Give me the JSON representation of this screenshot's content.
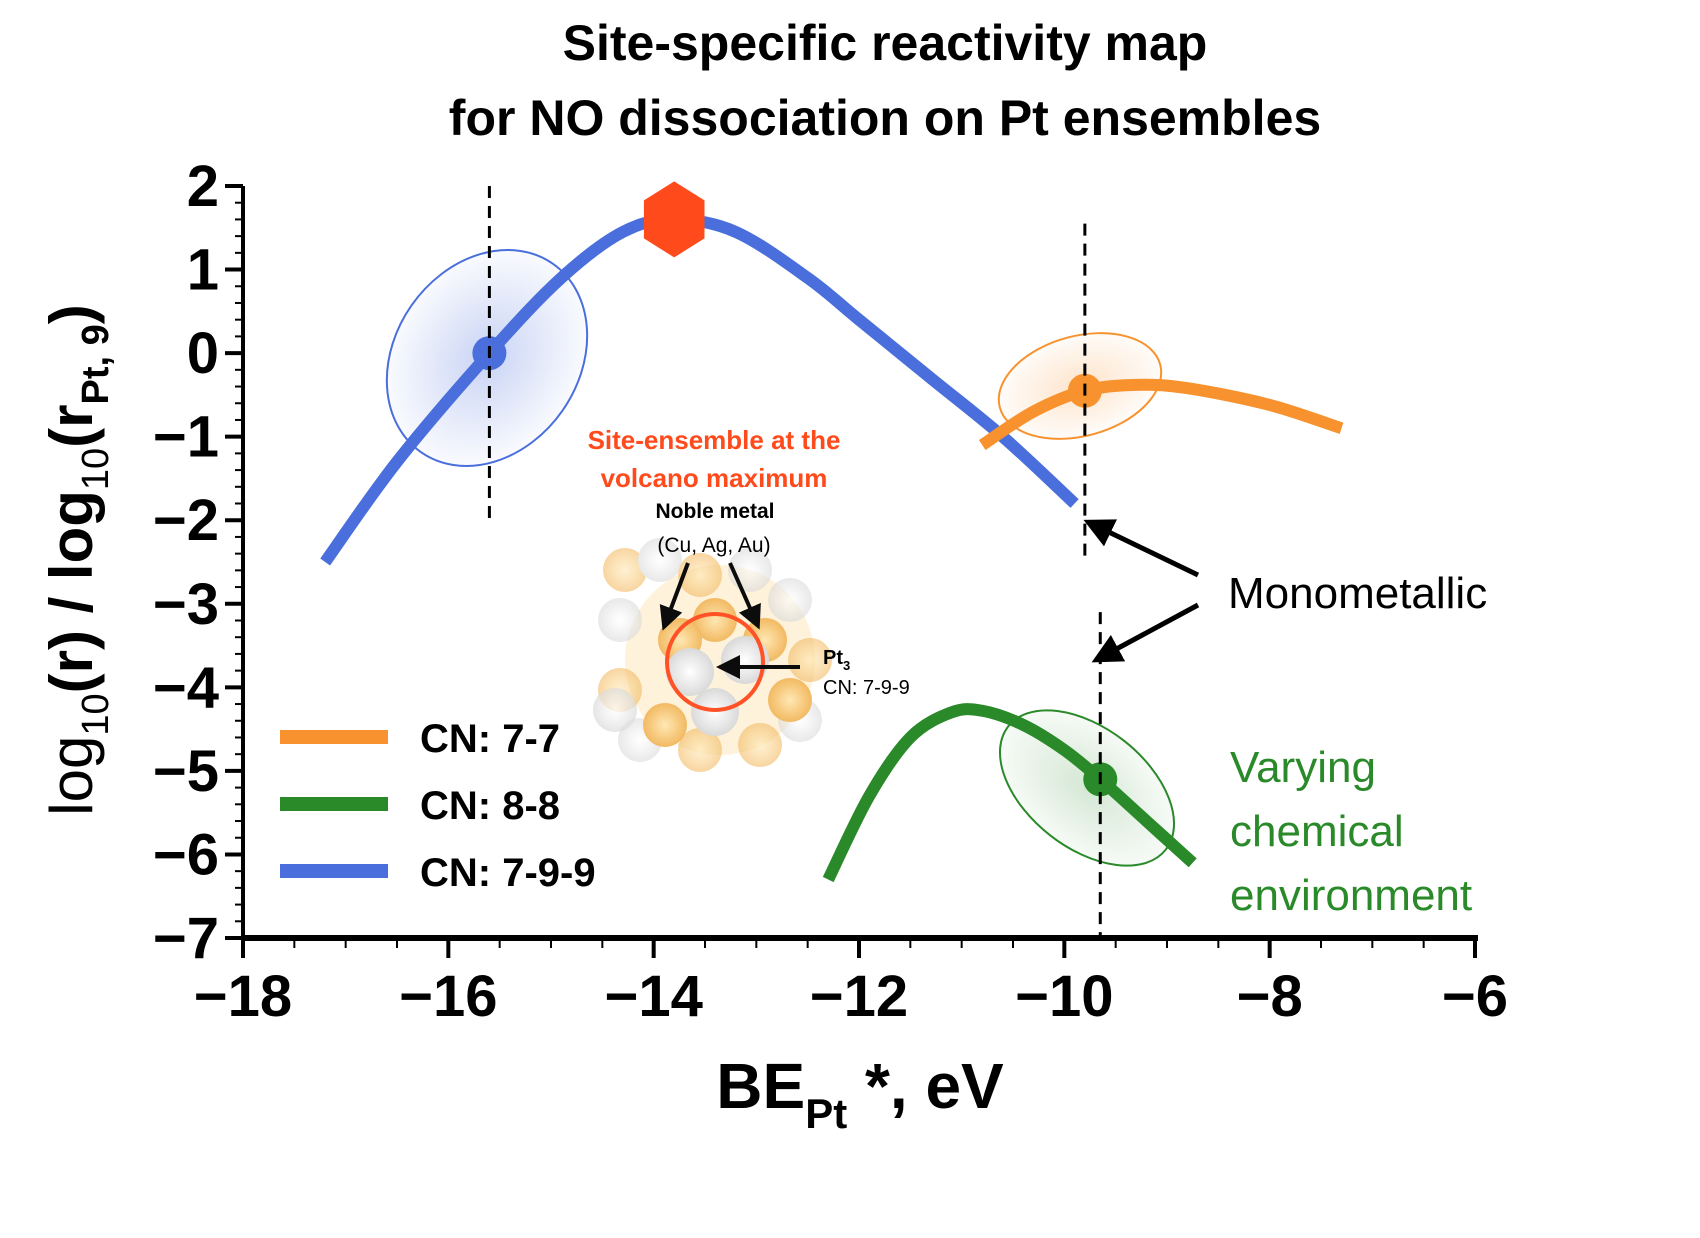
{
  "chart_data": {
    "type": "line",
    "title": [
      "Site-specific reactivity map",
      "for NO dissociation on Pt ensembles"
    ],
    "xlabel": {
      "main": "BE",
      "sub": "Pt",
      "rest": " *, eV"
    },
    "ylabel": {
      "a": "log",
      "a_sub": "10",
      "b": "(r) / log",
      "b_sub": "10",
      "c": "(r",
      "c_sub": "Pt, 9",
      "d": ")"
    },
    "xlim": [
      -18,
      -6
    ],
    "ylim": [
      -7,
      2
    ],
    "xticks": [
      "−18",
      "−16",
      "−14",
      "−12",
      "−10",
      "−8",
      "−6"
    ],
    "xtick_values": [
      -18,
      -16,
      -14,
      -12,
      -10,
      -8,
      -6
    ],
    "yticks": [
      "2",
      "1",
      "0",
      "−1",
      "−2",
      "−3",
      "−4",
      "−5",
      "−6",
      "−7"
    ],
    "ytick_values": [
      2,
      1,
      0,
      -1,
      -2,
      -3,
      -4,
      -5,
      -6,
      -7
    ],
    "series": [
      {
        "name": "CN: 7-9-9",
        "color": "#4a6fdc",
        "x": [
          -17.2,
          -16.5,
          -15.6,
          -14.9,
          -14.3,
          -13.8,
          -13.2,
          -12.5,
          -12.0,
          -11.3,
          -10.6,
          -9.9
        ],
        "y": [
          -2.5,
          -1.3,
          0.0,
          0.9,
          1.45,
          1.6,
          1.45,
          0.9,
          0.4,
          -0.3,
          -1.0,
          -1.8
        ],
        "marker": {
          "x": -15.6,
          "y": 0.0
        }
      },
      {
        "name": "CN: 7-7",
        "color": "#f7922e",
        "x": [
          -10.8,
          -10.3,
          -9.8,
          -9.3,
          -8.8,
          -8.0,
          -7.3
        ],
        "y": [
          -1.1,
          -0.7,
          -0.45,
          -0.38,
          -0.42,
          -0.62,
          -0.9
        ],
        "marker": {
          "x": -9.8,
          "y": -0.45
        }
      },
      {
        "name": "CN: 8-8",
        "color": "#2a8a2a",
        "x": [
          -12.3,
          -11.9,
          -11.5,
          -11.1,
          -10.8,
          -10.4,
          -10.0,
          -9.65,
          -9.2,
          -8.75
        ],
        "y": [
          -6.3,
          -5.3,
          -4.6,
          -4.3,
          -4.28,
          -4.45,
          -4.75,
          -5.1,
          -5.6,
          -6.1
        ],
        "marker": {
          "x": -9.65,
          "y": -5.1
        }
      }
    ],
    "legend": {
      "position": "bottom-left",
      "order": [
        "CN: 7-7",
        "CN: 8-8",
        "CN: 7-9-9"
      ]
    },
    "dashed_lines": [
      {
        "x": -15.6,
        "y": [
          2.0,
          -2.05
        ]
      },
      {
        "x": -9.8,
        "y": [
          1.55,
          -2.5
        ]
      },
      {
        "x": -9.65,
        "y": [
          -3.1,
          -7.0
        ]
      }
    ],
    "maximum_marker": {
      "x": -13.8,
      "y": 1.6,
      "color": "#ff4a1c"
    },
    "annotations": {
      "volcano": [
        "Site-ensemble at the",
        "volcano maximum"
      ],
      "noble_metal": "Noble metal",
      "noble_list": "(Cu, Ag, Au)",
      "pt3": "Pt",
      "pt3_sub": "3",
      "pt3_cn": "CN: 7-9-9",
      "monometallic": "Monometallic",
      "varying": [
        "Varying",
        "chemical",
        "environment"
      ]
    }
  }
}
